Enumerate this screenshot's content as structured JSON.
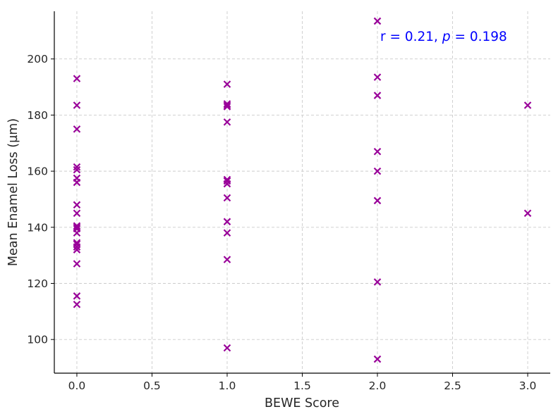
{
  "chart_data": {
    "type": "scatter",
    "xlabel": "BEWE Score",
    "ylabel": "Mean Enamel Loss (µm)",
    "xlim": [
      -0.15,
      3.15
    ],
    "ylim": [
      88,
      217
    ],
    "xticks": [
      0.0,
      0.5,
      1.0,
      1.5,
      2.0,
      2.5,
      3.0
    ],
    "xtick_labels": [
      "0.0",
      "0.5",
      "1.0",
      "1.5",
      "2.0",
      "2.5",
      "3.0"
    ],
    "yticks": [
      100,
      120,
      140,
      160,
      180,
      200
    ],
    "ytick_labels": [
      "100",
      "120",
      "140",
      "160",
      "180",
      "200"
    ],
    "grid": true,
    "marker": "x",
    "marker_color": "#990099",
    "annotation": {
      "prefix": "r = 0.21, ",
      "p_symbol": "p",
      "suffix": " = 0.198",
      "color": "#0000ff"
    },
    "series": [
      {
        "x": [
          0,
          0,
          0,
          0,
          0,
          0,
          0,
          0,
          0,
          0,
          0,
          0,
          0,
          0,
          0,
          0,
          0,
          0,
          0,
          0,
          1,
          1,
          1,
          1,
          1,
          1,
          1,
          1,
          1,
          1,
          1,
          1,
          1,
          2,
          2,
          2,
          2,
          2,
          2,
          2,
          2,
          3,
          3
        ],
        "y": [
          193,
          183.5,
          175,
          161.5,
          160.5,
          157.5,
          156,
          148,
          145,
          140.5,
          139.5,
          138,
          134,
          133,
          132,
          127,
          115.5,
          112.5,
          140,
          134.5,
          191,
          184,
          183.5,
          183,
          177.5,
          157,
          156.5,
          155.5,
          150.5,
          142,
          138,
          128.5,
          97,
          213.5,
          193.5,
          187,
          167,
          160,
          149.5,
          120.5,
          93,
          183.5,
          145
        ]
      }
    ]
  }
}
